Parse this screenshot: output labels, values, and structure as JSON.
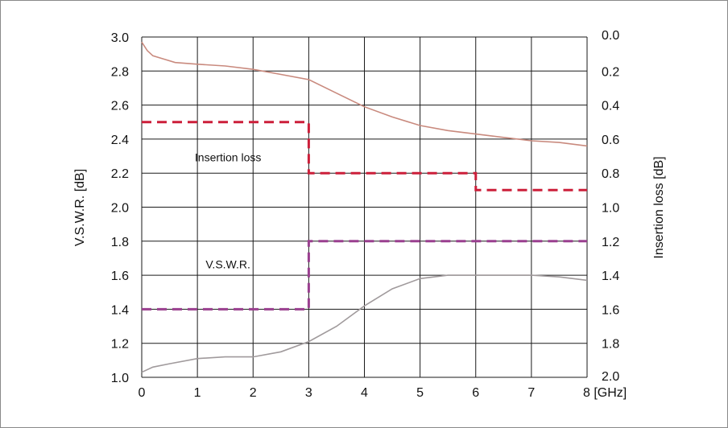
{
  "chart_data": {
    "type": "line",
    "x_axis": {
      "range": [
        0,
        8
      ],
      "ticks": [
        0,
        1,
        2,
        3,
        4,
        5,
        6,
        7,
        8
      ],
      "tick_labels": [
        "0",
        "1",
        "2",
        "3",
        "4",
        "5",
        "6",
        "7",
        "8 [GHz]"
      ]
    },
    "y_left": {
      "label": "V.S.W.R. [dB]",
      "range": [
        1.0,
        3.0
      ],
      "ticks": [
        "1.0",
        "1.2",
        "1.4",
        "1.6",
        "1.8",
        "2.0",
        "2.2",
        "2.4",
        "2.6",
        "2.8",
        "3.0"
      ]
    },
    "y_right": {
      "label": "Insertion loss [dB]",
      "range": [
        0.0,
        2.0
      ],
      "inverted": true,
      "ticks": [
        "0.0",
        "0.2",
        "0.4",
        "0.6",
        "0.8",
        "1.0",
        "1.2",
        "1.4",
        "1.6",
        "1.8",
        "2.0"
      ]
    },
    "grid": true,
    "annotations": [
      {
        "text": "Insertion loss",
        "x": 1.55,
        "y": 2.27
      },
      {
        "text": "V.S.W.R.",
        "x": 1.55,
        "y": 1.64
      }
    ],
    "series": [
      {
        "role": "insertion-loss-spec",
        "axis": "right",
        "style": "dashed",
        "color": "#cc1f3a",
        "x": [
          0,
          3,
          3,
          6,
          6,
          8
        ],
        "y": [
          0.5,
          0.5,
          0.8,
          0.8,
          0.9,
          0.9
        ]
      },
      {
        "role": "vswr-spec",
        "axis": "left",
        "style": "dashed",
        "color": "#9a3f8f",
        "x": [
          0,
          3,
          3,
          8
        ],
        "y": [
          1.4,
          1.4,
          1.8,
          1.8
        ]
      },
      {
        "role": "insertion-loss-measured",
        "axis": "right",
        "style": "solid",
        "color": "#c98a7e",
        "x": [
          0,
          0.1,
          0.2,
          0.4,
          0.6,
          1.0,
          1.5,
          2.0,
          2.5,
          3.0,
          3.5,
          4.0,
          4.5,
          5.0,
          5.5,
          6.0,
          6.5,
          7.0,
          7.5,
          8.0
        ],
        "y": [
          0.03,
          0.08,
          0.11,
          0.13,
          0.15,
          0.16,
          0.17,
          0.19,
          0.22,
          0.25,
          0.33,
          0.41,
          0.47,
          0.52,
          0.55,
          0.57,
          0.59,
          0.61,
          0.62,
          0.64
        ]
      },
      {
        "role": "vswr-measured",
        "axis": "left",
        "style": "solid",
        "color": "#a09a9c",
        "x": [
          0,
          0.2,
          0.5,
          1.0,
          1.5,
          2.0,
          2.5,
          3.0,
          3.5,
          4.0,
          4.5,
          5.0,
          5.5,
          6.0,
          6.5,
          7.0,
          7.5,
          8.0
        ],
        "y": [
          1.03,
          1.06,
          1.08,
          1.11,
          1.12,
          1.12,
          1.15,
          1.21,
          1.3,
          1.42,
          1.52,
          1.58,
          1.6,
          1.6,
          1.6,
          1.6,
          1.59,
          1.57
        ]
      }
    ]
  }
}
